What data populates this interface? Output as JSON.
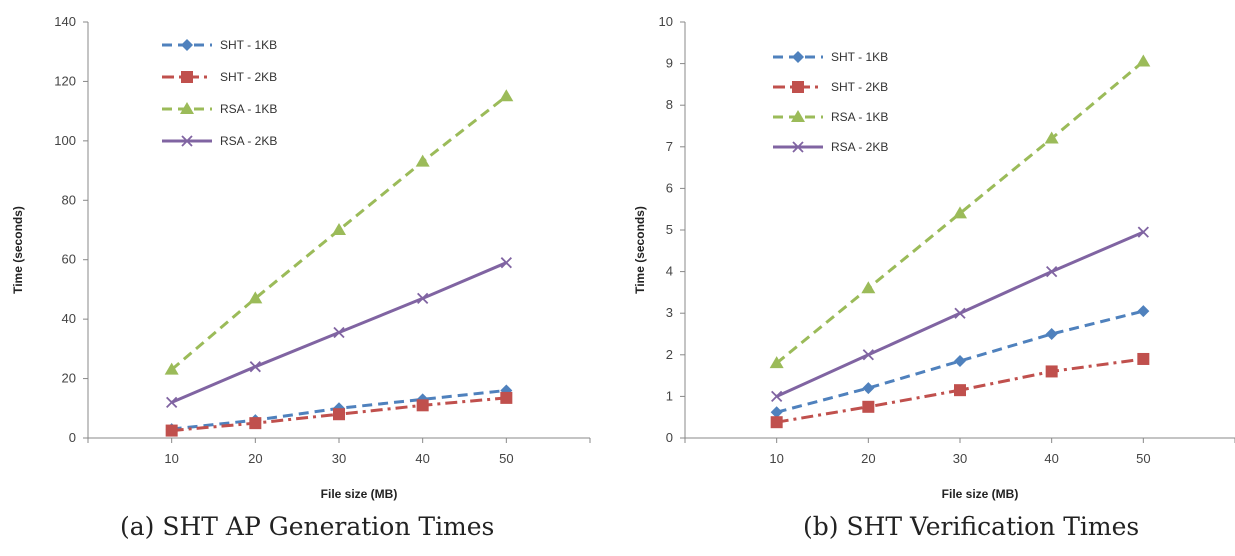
{
  "chart_data": [
    {
      "type": "line",
      "caption": "(a) SHT AP Generation Times",
      "xlabel": "File size (MB)",
      "ylabel": "Time (seconds)",
      "x": [
        10,
        20,
        30,
        40,
        50
      ],
      "xlim": [
        0,
        60
      ],
      "ylim": [
        0,
        140
      ],
      "yticks": [
        0,
        20,
        40,
        60,
        80,
        100,
        120,
        140
      ],
      "grid": false,
      "legend_position": "top-left",
      "series": [
        {
          "name": "SHT - 1KB",
          "values": [
            3,
            6,
            10,
            13,
            16
          ],
          "color": "#4f81bd",
          "marker": "diamond",
          "dash": "dash"
        },
        {
          "name": "SHT - 2KB",
          "values": [
            2.5,
            5,
            8,
            11,
            13.5
          ],
          "color": "#c0504d",
          "marker": "square",
          "dash": "dashdot"
        },
        {
          "name": "RSA - 1KB",
          "values": [
            23,
            47,
            70,
            93,
            115
          ],
          "color": "#9bbb59",
          "marker": "triangle",
          "dash": "dash"
        },
        {
          "name": "RSA - 2KB",
          "values": [
            12,
            24,
            35.5,
            47,
            59
          ],
          "color": "#8064a2",
          "marker": "x",
          "dash": "solid"
        }
      ]
    },
    {
      "type": "line",
      "caption": "(b) SHT Verification Times",
      "xlabel": "File size (MB)",
      "ylabel": "Time (seconds)",
      "x": [
        10,
        20,
        30,
        40,
        50
      ],
      "xlim": [
        0,
        60
      ],
      "ylim": [
        0,
        10
      ],
      "yticks": [
        0,
        1,
        2,
        3,
        4,
        5,
        6,
        7,
        8,
        9,
        10
      ],
      "grid": false,
      "legend_position": "top-left",
      "series": [
        {
          "name": "SHT - 1KB",
          "values": [
            0.62,
            1.2,
            1.85,
            2.5,
            3.05
          ],
          "color": "#4f81bd",
          "marker": "diamond",
          "dash": "dash"
        },
        {
          "name": "SHT - 2KB",
          "values": [
            0.38,
            0.75,
            1.15,
            1.6,
            1.9
          ],
          "color": "#c0504d",
          "marker": "square",
          "dash": "dashdot"
        },
        {
          "name": "RSA - 1KB",
          "values": [
            1.8,
            3.6,
            5.4,
            7.2,
            9.05
          ],
          "color": "#9bbb59",
          "marker": "triangle",
          "dash": "dash"
        },
        {
          "name": "RSA - 2KB",
          "values": [
            1.0,
            2.0,
            3.0,
            4.0,
            4.95
          ],
          "color": "#8064a2",
          "marker": "x",
          "dash": "solid"
        }
      ]
    }
  ]
}
